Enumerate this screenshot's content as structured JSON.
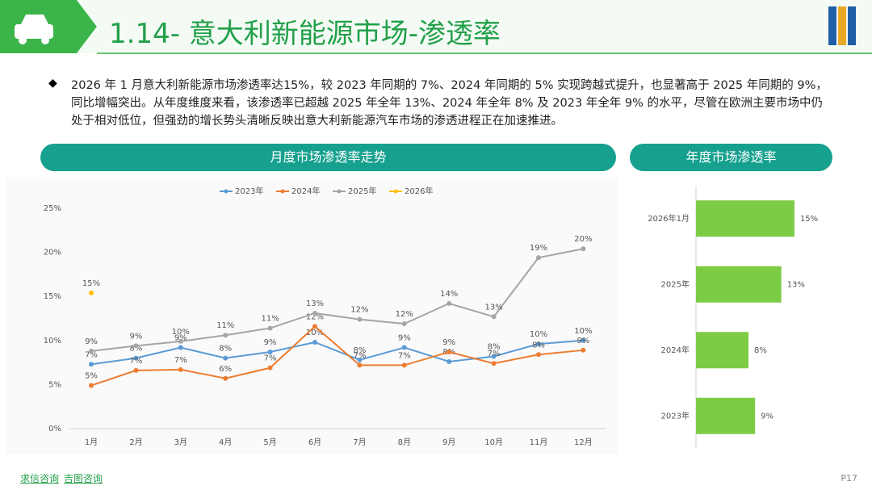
{
  "header": {
    "title": "1.14- 意大利新能源市场-渗透率",
    "paragraph": "2026 年 1 月意大利新能源市场渗透率达15%，较 2023 年同期的 7%、2024 年同期的 5% 实现跨越式提升，也显著高于 2025 年同期的 9%，同比增幅突出。从年度维度来看，该渗透率已超越 2025 年全年 13%、2024 年全年 8% 及 2023 年全年 9% 的水平，尽管在欧洲主要市场中仍处于相对低位，但强劲的增长势头清晰反映出意大利新能源汽车市场的渗透进程正在加速推进。"
  },
  "footer": {
    "links": [
      "求信咨询",
      "吉图咨询"
    ],
    "page": "P17"
  },
  "chart_data": [
    {
      "type": "line",
      "title": "月度市场渗透率走势",
      "categories": [
        "1月",
        "2月",
        "3月",
        "4月",
        "5月",
        "6月",
        "7月",
        "8月",
        "9月",
        "10月",
        "11月",
        "12月"
      ],
      "ylim": [
        0,
        25
      ],
      "yticks": [
        {
          "value": 0,
          "label": "0%"
        },
        {
          "value": 5,
          "label": "5%"
        },
        {
          "value": 10,
          "label": "10%"
        },
        {
          "value": 15,
          "label": "15%"
        },
        {
          "value": 20,
          "label": "20%"
        },
        {
          "value": 25,
          "label": "25%"
        }
      ],
      "series": [
        {
          "name": "2023年",
          "color": "#5b9bd5",
          "values": [
            7.3,
            8.0,
            9.2,
            8.0,
            8.7,
            9.8,
            7.8,
            9.2,
            7.6,
            8.2,
            9.6,
            10.0
          ],
          "value_labels": [
            "7%",
            "8%",
            "9%",
            "8%",
            "9%",
            "10%",
            "8%",
            "9%",
            "8%",
            "8%",
            "10%",
            "10%"
          ]
        },
        {
          "name": "2024年",
          "color": "#ed7d31",
          "values": [
            4.9,
            6.6,
            6.7,
            5.7,
            6.9,
            11.6,
            7.2,
            7.2,
            8.7,
            7.4,
            8.4,
            8.9
          ],
          "value_labels": [
            "5%",
            "7%",
            "7%",
            "6%",
            "7%",
            "12%",
            "7%",
            "7%",
            "9%",
            "7%",
            "8%",
            "9%"
          ]
        },
        {
          "name": "2025年",
          "color": "#a5a5a5",
          "values": [
            8.8,
            9.4,
            9.9,
            10.6,
            11.4,
            13.1,
            12.4,
            11.9,
            14.2,
            12.7,
            19.4,
            20.4
          ],
          "value_labels": [
            "9%",
            "9%",
            "10%",
            "11%",
            "11%",
            "13%",
            "12%",
            "12%",
            "14%",
            "13%",
            "19%",
            "20%"
          ]
        },
        {
          "name": "2026年",
          "color": "#ffc000",
          "values": [
            15.4,
            null,
            null,
            null,
            null,
            null,
            null,
            null,
            null,
            null,
            null,
            null
          ],
          "value_labels": [
            "15%",
            null,
            null,
            null,
            null,
            null,
            null,
            null,
            null,
            null,
            null,
            null
          ]
        }
      ]
    },
    {
      "type": "bar",
      "title": "年度市场渗透率",
      "orientation": "horizontal",
      "color": "#7dcc45",
      "categories": [
        "2026年1月",
        "2025年",
        "2024年",
        "2023年"
      ],
      "values": [
        15,
        13,
        8,
        9
      ],
      "value_labels": [
        "15%",
        "13%",
        "8%",
        "9%"
      ]
    }
  ]
}
